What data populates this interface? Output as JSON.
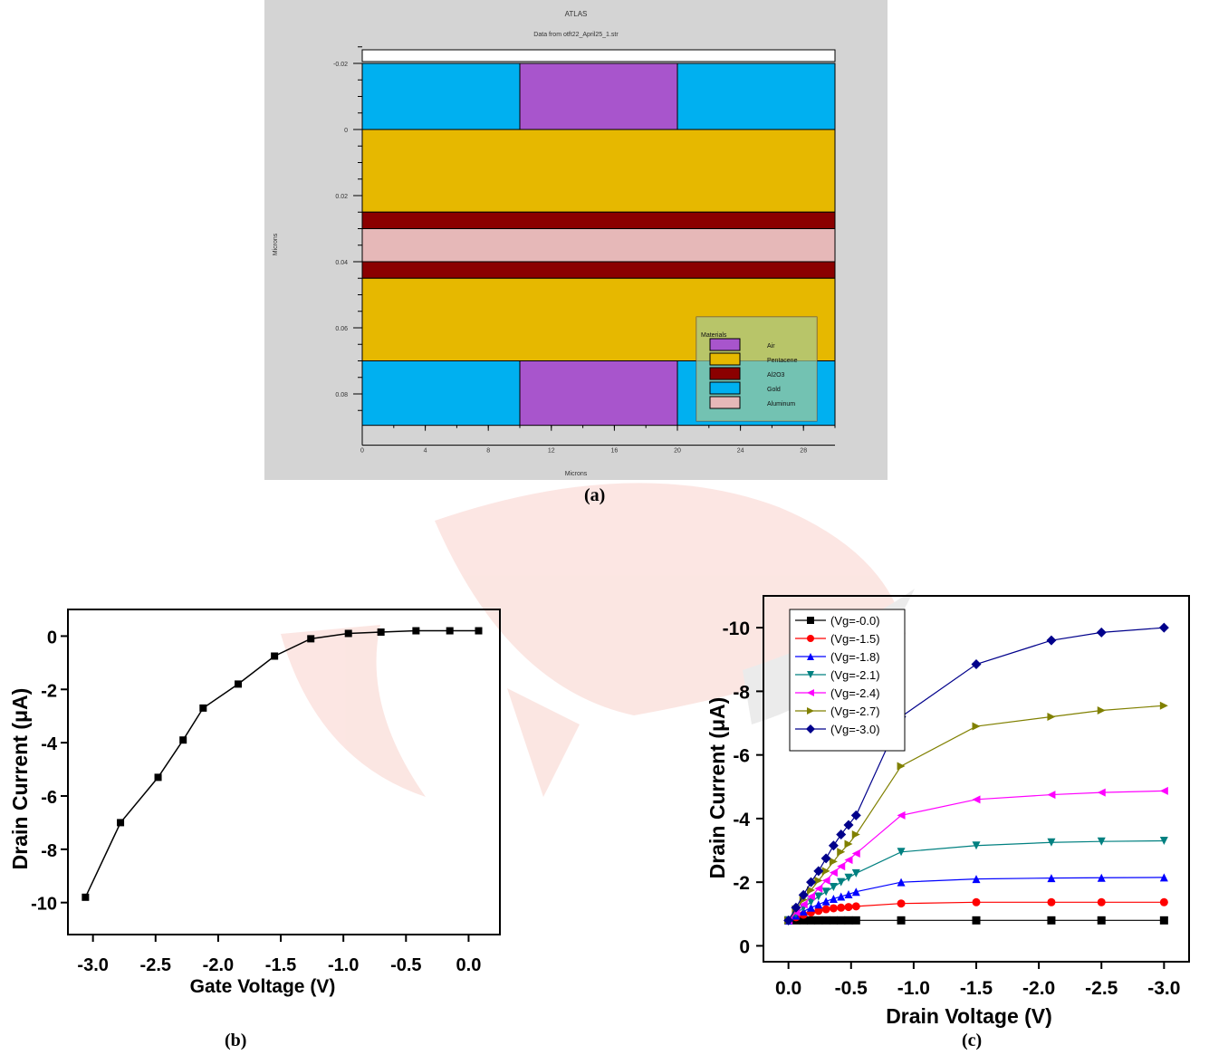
{
  "panel_a": {
    "caption": "(a)",
    "title": "ATLAS",
    "subtitle": "Data from otft22_April25_1.str",
    "xlabel": "Microns",
    "ylabel": "Microns",
    "x_ticks": [
      "0",
      "4",
      "8",
      "12",
      "16",
      "20",
      "24",
      "28"
    ],
    "y_ticks": [
      "-0.02",
      "0",
      "0.02",
      "0.04",
      "0.06",
      "0.08"
    ],
    "legend_title": "Materials",
    "materials": [
      {
        "name": "Air",
        "color": "#a855cc"
      },
      {
        "name": "Pentacene",
        "color": "#e6b800"
      },
      {
        "name": "Al2O3",
        "color": "#8b0000"
      },
      {
        "name": "Gold",
        "color": "#00b0f0"
      },
      {
        "name": "Aluminum",
        "color": "#e6b8b8"
      }
    ]
  },
  "chart_data": [
    {
      "type": "line",
      "caption": "(b)",
      "xlabel": "Gate Voltage (V)",
      "ylabel": "Drain Current (μA)",
      "xlim": [
        -3.2,
        0.25
      ],
      "ylim": [
        -11.2,
        1.0
      ],
      "x_ticks": [
        -3.0,
        -2.5,
        -2.0,
        -1.5,
        -1.0,
        -0.5,
        0.0
      ],
      "x_tick_labels": [
        "-3.0",
        "-2.5",
        "-2.0",
        "-1.5",
        "-1.0",
        "-0.5",
        "0.0"
      ],
      "y_ticks": [
        0,
        -2,
        -4,
        -6,
        -8,
        -10
      ],
      "y_tick_labels": [
        "0",
        "-2",
        "-4",
        "-6",
        "-8",
        "-10"
      ],
      "series": [
        {
          "x": [
            -3.06,
            -2.78,
            -2.48,
            -2.28,
            -2.12,
            -1.84,
            -1.55,
            -1.26,
            -0.96,
            -0.7,
            -0.42,
            -0.15,
            0.08
          ],
          "y": [
            -9.8,
            -7.0,
            -5.3,
            -3.9,
            -2.7,
            -1.8,
            -0.75,
            -0.1,
            0.1,
            0.15,
            0.2,
            0.2,
            0.2
          ]
        }
      ]
    },
    {
      "type": "line",
      "caption": "(c)",
      "xlabel": "Drain Voltage (V)",
      "ylabel": "Drain Current (μA)",
      "xlim": [
        0.2,
        -3.2
      ],
      "ylim": [
        0.5,
        -11.0
      ],
      "x_ticks": [
        0.0,
        -0.5,
        -1.0,
        -1.5,
        -2.0,
        -2.5,
        -3.0
      ],
      "x_tick_labels": [
        "0.0",
        "-0.5",
        "-1.0",
        "-1.5",
        "-2.0",
        "-2.5",
        "-3.0"
      ],
      "y_ticks": [
        0,
        -2,
        -4,
        -6,
        -8,
        -10
      ],
      "y_tick_labels": [
        "0",
        "-2",
        "-4",
        "-6",
        "-8",
        "-10"
      ],
      "x": [
        0.0,
        -0.06,
        -0.12,
        -0.18,
        -0.24,
        -0.3,
        -0.36,
        -0.42,
        -0.48,
        -0.54,
        -0.9,
        -1.5,
        -2.1,
        -2.5,
        -3.0
      ],
      "series": [
        {
          "name": "(Vg=-0.0)",
          "color": "#000000",
          "marker": "square",
          "y": [
            -0.8,
            -0.8,
            -0.8,
            -0.8,
            -0.8,
            -0.8,
            -0.8,
            -0.8,
            -0.8,
            -0.8,
            -0.8,
            -0.8,
            -0.8,
            -0.8,
            -0.8
          ]
        },
        {
          "name": "(Vg=-1.5)",
          "color": "#ff0000",
          "marker": "circle",
          "y": [
            -0.8,
            -0.9,
            -0.98,
            -1.05,
            -1.1,
            -1.15,
            -1.18,
            -1.2,
            -1.22,
            -1.24,
            -1.33,
            -1.37,
            -1.37,
            -1.37,
            -1.37
          ]
        },
        {
          "name": "(Vg=-1.8)",
          "color": "#0000ff",
          "marker": "triangle-up",
          "y": [
            -0.8,
            -0.95,
            -1.08,
            -1.2,
            -1.3,
            -1.4,
            -1.48,
            -1.55,
            -1.62,
            -1.7,
            -2.0,
            -2.1,
            -2.13,
            -2.14,
            -2.15
          ]
        },
        {
          "name": "(Vg=-2.1)",
          "color": "#008080",
          "marker": "triangle-down",
          "y": [
            -0.8,
            -1.0,
            -1.2,
            -1.38,
            -1.55,
            -1.7,
            -1.85,
            -2.0,
            -2.14,
            -2.28,
            -2.95,
            -3.15,
            -3.25,
            -3.28,
            -3.3
          ]
        },
        {
          "name": "(Vg=-2.4)",
          "color": "#ff00ff",
          "marker": "triangle-left",
          "y": [
            -0.8,
            -1.05,
            -1.3,
            -1.55,
            -1.8,
            -2.05,
            -2.3,
            -2.5,
            -2.7,
            -2.9,
            -4.1,
            -4.6,
            -4.75,
            -4.82,
            -4.87
          ]
        },
        {
          "name": "(Vg=-2.7)",
          "color": "#808000",
          "marker": "triangle-right",
          "y": [
            -0.8,
            -1.15,
            -1.45,
            -1.75,
            -2.05,
            -2.35,
            -2.65,
            -2.95,
            -3.2,
            -3.5,
            -5.65,
            -6.9,
            -7.2,
            -7.4,
            -7.55
          ]
        },
        {
          "name": "(Vg=-3.0)",
          "color": "#00008b",
          "marker": "diamond",
          "y": [
            -0.8,
            -1.2,
            -1.6,
            -2.0,
            -2.35,
            -2.75,
            -3.15,
            -3.5,
            -3.8,
            -4.1,
            -7.2,
            -8.85,
            -9.6,
            -9.85,
            -10.0
          ]
        }
      ]
    }
  ]
}
